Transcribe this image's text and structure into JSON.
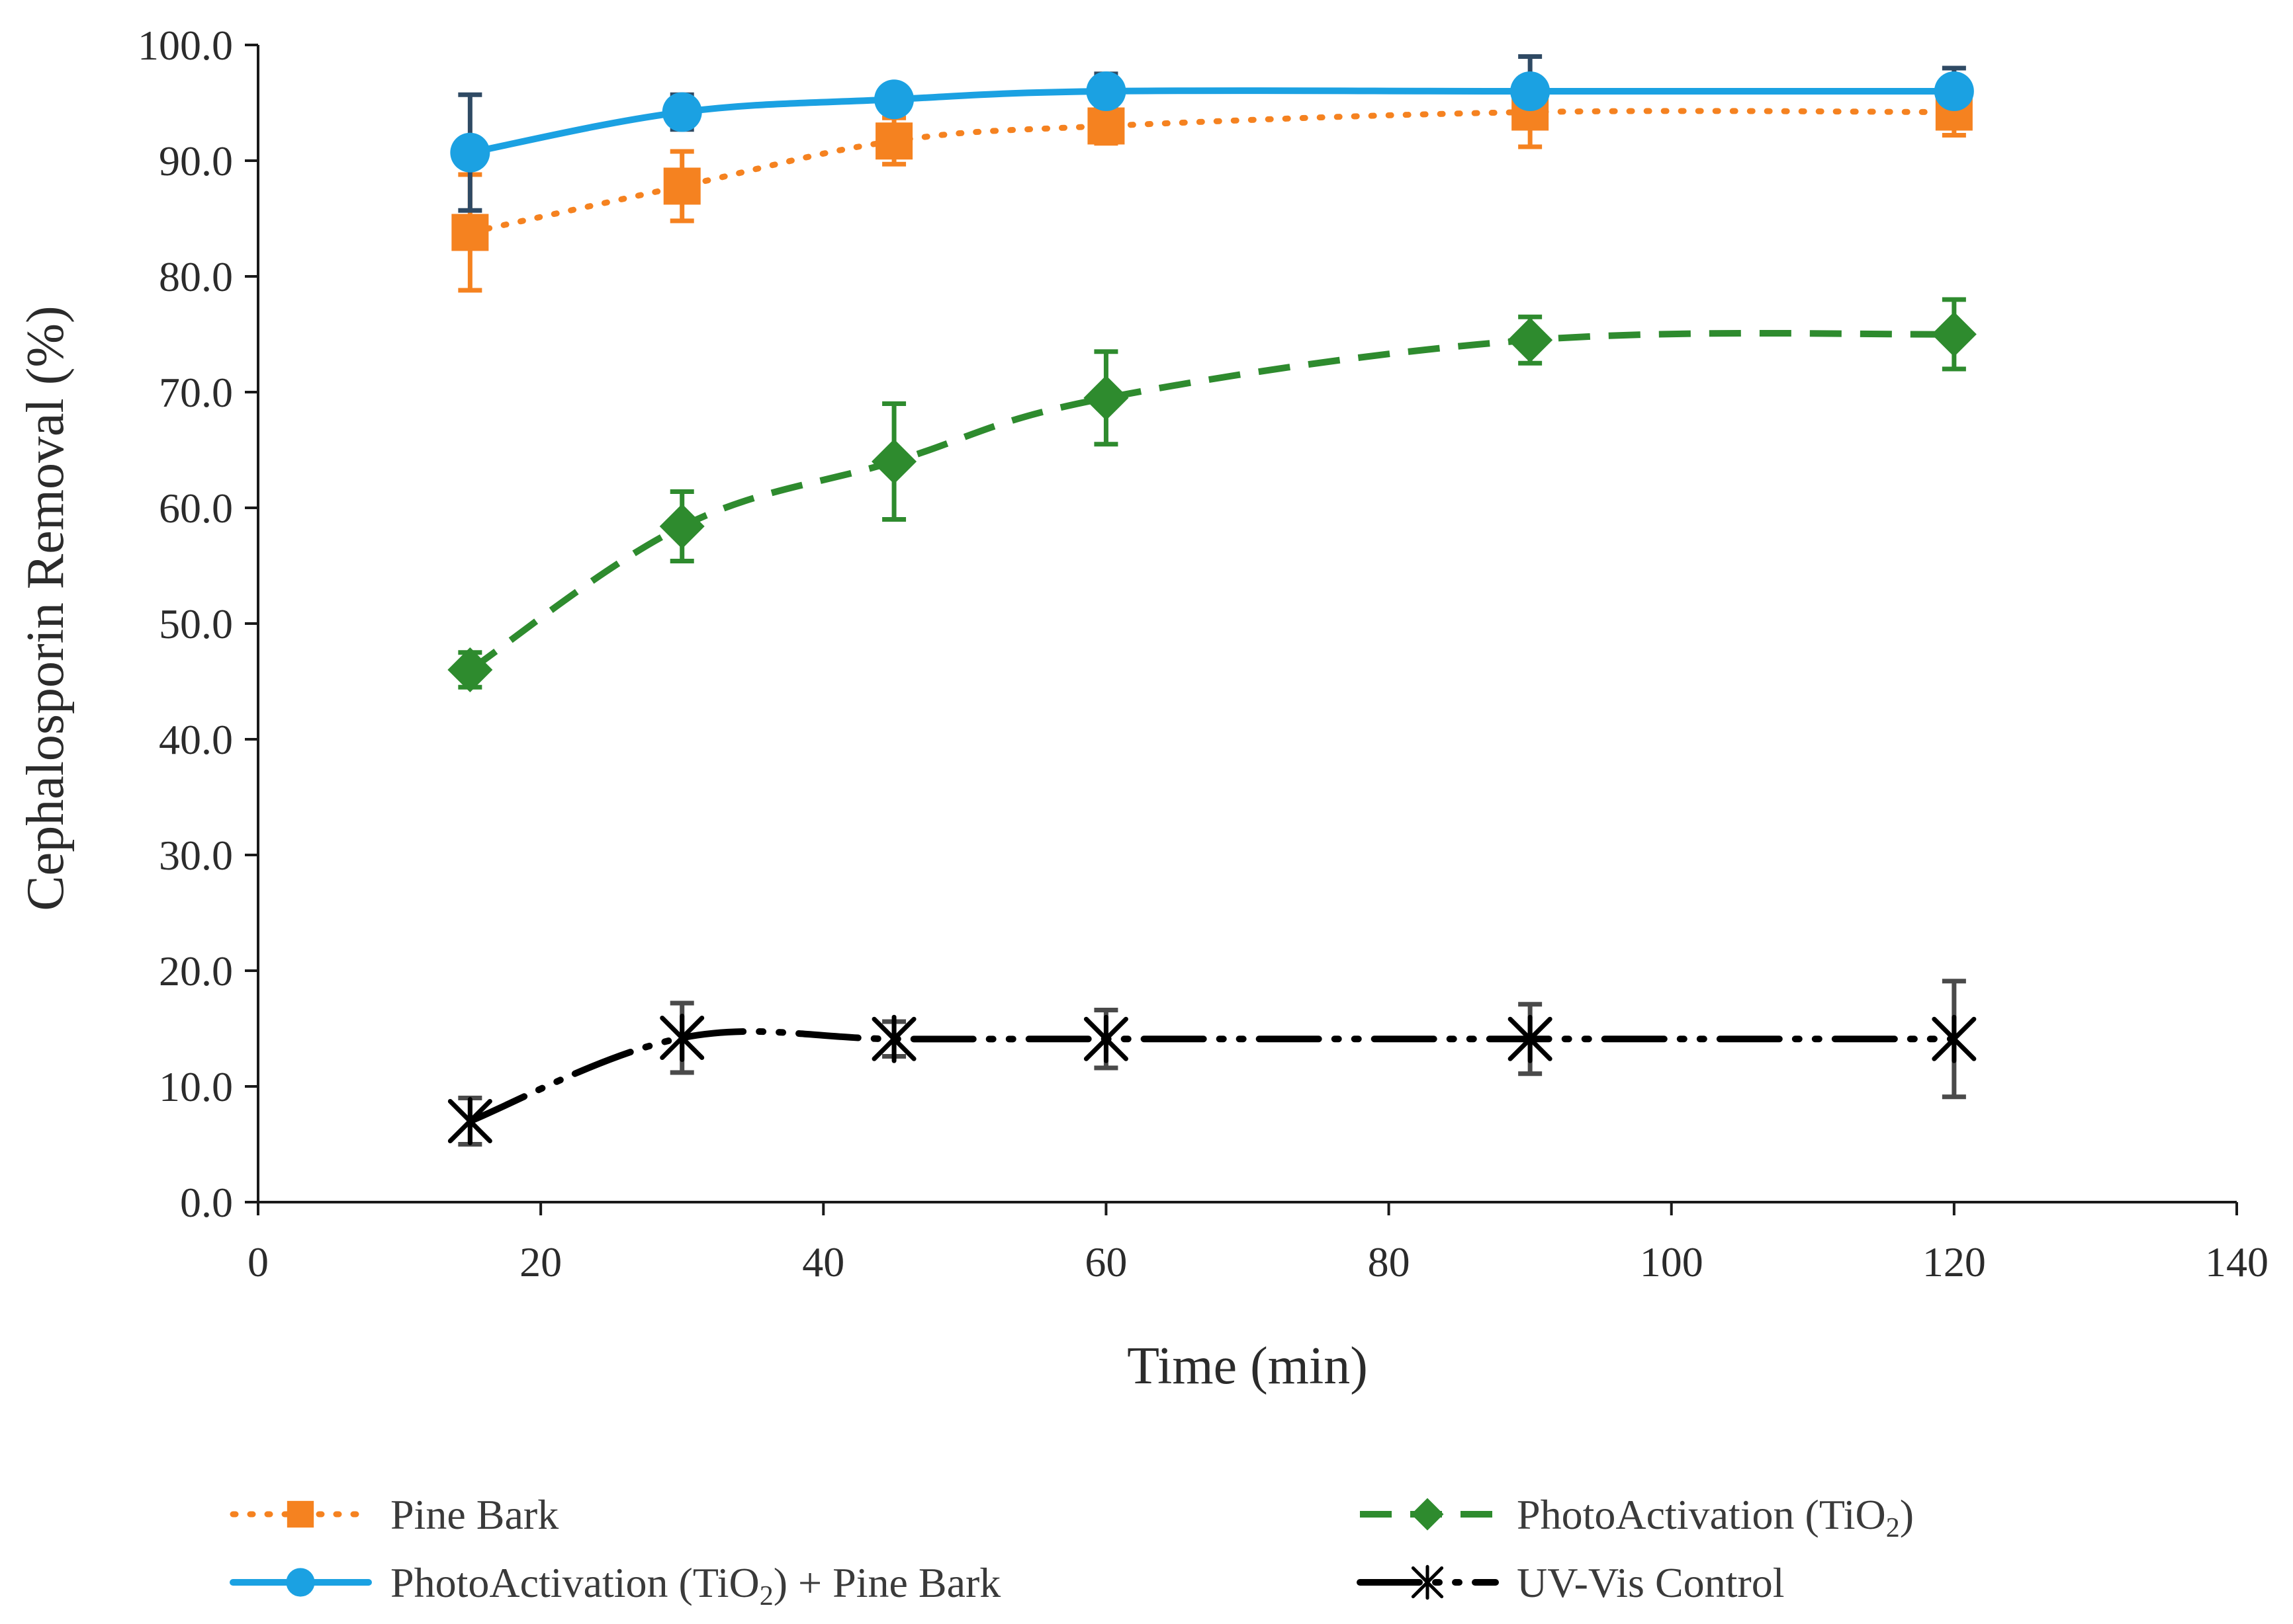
{
  "chart_data": {
    "type": "line",
    "title": "",
    "xlabel": "Time (min)",
    "ylabel": "Cephalosporin Removal (%)",
    "xlim": [
      0,
      140
    ],
    "ylim": [
      0,
      100
    ],
    "xticks": [
      0,
      20,
      40,
      60,
      80,
      100,
      120,
      140
    ],
    "yticks": [
      0,
      10,
      20,
      30,
      40,
      50,
      60,
      70,
      80,
      90,
      100
    ],
    "xtick_labels": [
      "0",
      "20",
      "40",
      "60",
      "80",
      "100",
      "120",
      "140"
    ],
    "ytick_labels": [
      "0.0",
      "10.0",
      "20.0",
      "30.0",
      "40.0",
      "50.0",
      "60.0",
      "70.0",
      "80.0",
      "90.0",
      "100.0"
    ],
    "grid": false,
    "legend_position": "bottom",
    "series": [
      {
        "name": "Pine Bark",
        "label_parts": [
          "Pine Bark"
        ],
        "color": "#F58220",
        "marker": "square",
        "line_style": "dotted",
        "error_bar_color": "#F58220",
        "x": [
          15,
          30,
          45,
          60,
          90,
          120
        ],
        "y": [
          83.8,
          87.8,
          91.7,
          93.0,
          94.2,
          94.2
        ],
        "error": [
          5.0,
          3.0,
          2.0,
          1.5,
          3.0,
          2.0
        ]
      },
      {
        "name": "PhotoActivation (TiO2)",
        "label_parts": [
          "PhotoActivation (TiO",
          "2",
          ")"
        ],
        "color": "#2E8B2E",
        "marker": "diamond",
        "line_style": "dashed",
        "error_bar_color": "#2E8B2E",
        "x": [
          15,
          30,
          45,
          60,
          90,
          120
        ],
        "y": [
          46.0,
          58.4,
          64.0,
          69.5,
          74.5,
          75.0
        ],
        "error": [
          1.5,
          3.0,
          5.0,
          4.0,
          2.0,
          3.0
        ]
      },
      {
        "name": "PhotoActivation (TiO2) + Pine Bark",
        "label_parts": [
          "PhotoActivation (TiO",
          "2",
          ") + Pine Bark"
        ],
        "color": "#1BA1E2",
        "marker": "circle",
        "line_style": "solid",
        "error_bar_color": "#2F4A64",
        "x": [
          15,
          30,
          45,
          60,
          90,
          120
        ],
        "y": [
          90.7,
          94.2,
          95.3,
          96.0,
          96.0,
          96.0
        ],
        "error": [
          5.0,
          1.5,
          1.0,
          1.5,
          3.0,
          2.0
        ]
      },
      {
        "name": "UV-Vis Control",
        "label_parts": [
          "UV-Vis Control"
        ],
        "color": "#000000",
        "marker": "asterisk",
        "line_style": "long-dash-dot-dot",
        "error_bar_color": "#4a4a4a",
        "x": [
          15,
          30,
          45,
          60,
          90,
          120
        ],
        "y": [
          7.0,
          14.2,
          14.1,
          14.1,
          14.1,
          14.1
        ],
        "error": [
          2.0,
          3.0,
          1.5,
          2.5,
          3.0,
          5.0
        ]
      }
    ]
  }
}
